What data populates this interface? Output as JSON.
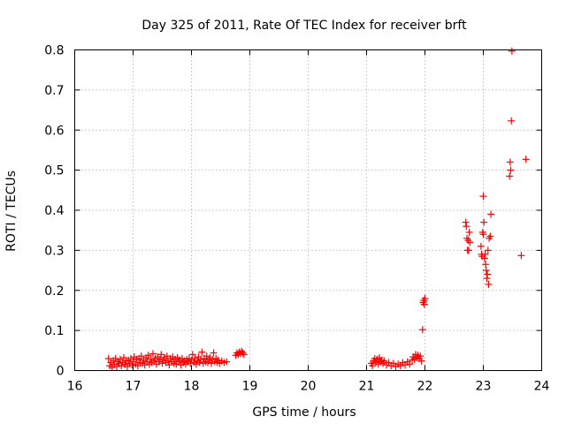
{
  "chart_data": {
    "type": "scatter",
    "title": "Day 325 of 2011, Rate Of TEC Index for receiver brft",
    "xlabel": "GPS time / hours",
    "ylabel": "ROTI / TECUs",
    "xlim": [
      16,
      24
    ],
    "ylim": [
      0,
      0.8
    ],
    "x_ticks": [
      16,
      17,
      18,
      19,
      20,
      21,
      22,
      23,
      24
    ],
    "y_ticks": [
      0,
      0.1,
      0.2,
      0.3,
      0.4,
      0.5,
      0.6,
      0.7,
      0.8
    ],
    "x_tick_labels": [
      "16",
      "17",
      "18",
      "19",
      "20",
      "21",
      "22",
      "23",
      "24"
    ],
    "y_tick_labels": [
      "0",
      "0.1",
      "0.2",
      "0.3",
      "0.4",
      "0.5",
      "0.6",
      "0.7",
      "0.8"
    ],
    "grid": true,
    "marker": "plus",
    "color": "#ff0000",
    "points": [
      [
        16.58,
        0.03
      ],
      [
        16.6,
        0.012
      ],
      [
        16.62,
        0.02
      ],
      [
        16.64,
        0.008
      ],
      [
        16.66,
        0.025
      ],
      [
        16.68,
        0.015
      ],
      [
        16.7,
        0.03
      ],
      [
        16.72,
        0.01
      ],
      [
        16.74,
        0.022
      ],
      [
        16.76,
        0.018
      ],
      [
        16.78,
        0.028
      ],
      [
        16.8,
        0.012
      ],
      [
        16.82,
        0.02
      ],
      [
        16.84,
        0.032
      ],
      [
        16.86,
        0.015
      ],
      [
        16.88,
        0.024
      ],
      [
        16.9,
        0.01
      ],
      [
        16.92,
        0.026
      ],
      [
        16.94,
        0.018
      ],
      [
        16.96,
        0.03
      ],
      [
        16.98,
        0.014
      ],
      [
        17.0,
        0.022
      ],
      [
        17.02,
        0.034
      ],
      [
        17.04,
        0.016
      ],
      [
        17.06,
        0.028
      ],
      [
        17.08,
        0.012
      ],
      [
        17.1,
        0.03
      ],
      [
        17.12,
        0.02
      ],
      [
        17.14,
        0.036
      ],
      [
        17.16,
        0.018
      ],
      [
        17.18,
        0.026
      ],
      [
        17.2,
        0.014
      ],
      [
        17.22,
        0.032
      ],
      [
        17.24,
        0.022
      ],
      [
        17.26,
        0.038
      ],
      [
        17.28,
        0.016
      ],
      [
        17.3,
        0.028
      ],
      [
        17.32,
        0.02
      ],
      [
        17.34,
        0.042
      ],
      [
        17.36,
        0.024
      ],
      [
        17.38,
        0.03
      ],
      [
        17.4,
        0.016
      ],
      [
        17.42,
        0.034
      ],
      [
        17.44,
        0.022
      ],
      [
        17.46,
        0.028
      ],
      [
        17.48,
        0.04
      ],
      [
        17.5,
        0.018
      ],
      [
        17.52,
        0.026
      ],
      [
        17.54,
        0.032
      ],
      [
        17.56,
        0.02
      ],
      [
        17.58,
        0.036
      ],
      [
        17.6,
        0.024
      ],
      [
        17.62,
        0.014
      ],
      [
        17.64,
        0.03
      ],
      [
        17.66,
        0.022
      ],
      [
        17.68,
        0.034
      ],
      [
        17.7,
        0.018
      ],
      [
        17.72,
        0.028
      ],
      [
        17.74,
        0.016
      ],
      [
        17.76,
        0.032
      ],
      [
        17.78,
        0.022
      ],
      [
        17.8,
        0.026
      ],
      [
        17.82,
        0.014
      ],
      [
        17.84,
        0.03
      ],
      [
        17.86,
        0.02
      ],
      [
        17.88,
        0.024
      ],
      [
        17.9,
        0.016
      ],
      [
        17.92,
        0.028
      ],
      [
        17.94,
        0.022
      ],
      [
        17.96,
        0.03
      ],
      [
        17.98,
        0.018
      ],
      [
        18.0,
        0.026
      ],
      [
        18.02,
        0.04
      ],
      [
        18.04,
        0.02
      ],
      [
        18.06,
        0.03
      ],
      [
        18.08,
        0.016
      ],
      [
        18.1,
        0.024
      ],
      [
        18.12,
        0.034
      ],
      [
        18.14,
        0.02
      ],
      [
        18.16,
        0.028
      ],
      [
        18.18,
        0.046
      ],
      [
        18.2,
        0.018
      ],
      [
        18.22,
        0.03
      ],
      [
        18.24,
        0.022
      ],
      [
        18.26,
        0.036
      ],
      [
        18.28,
        0.02
      ],
      [
        18.3,
        0.026
      ],
      [
        18.32,
        0.032
      ],
      [
        18.34,
        0.018
      ],
      [
        18.36,
        0.028
      ],
      [
        18.38,
        0.044
      ],
      [
        18.4,
        0.022
      ],
      [
        18.42,
        0.03
      ],
      [
        18.44,
        0.02
      ],
      [
        18.46,
        0.026
      ],
      [
        18.48,
        0.018
      ],
      [
        18.52,
        0.024
      ],
      [
        18.56,
        0.02
      ],
      [
        18.6,
        0.022
      ],
      [
        18.76,
        0.038
      ],
      [
        18.78,
        0.044
      ],
      [
        18.8,
        0.04
      ],
      [
        18.82,
        0.046
      ],
      [
        18.84,
        0.042
      ],
      [
        18.86,
        0.048
      ],
      [
        18.88,
        0.044
      ],
      [
        18.9,
        0.04
      ],
      [
        21.08,
        0.018
      ],
      [
        21.1,
        0.012
      ],
      [
        21.12,
        0.024
      ],
      [
        21.14,
        0.03
      ],
      [
        21.16,
        0.02
      ],
      [
        21.18,
        0.028
      ],
      [
        21.2,
        0.016
      ],
      [
        21.22,
        0.032
      ],
      [
        21.24,
        0.022
      ],
      [
        21.26,
        0.026
      ],
      [
        21.28,
        0.018
      ],
      [
        21.3,
        0.024
      ],
      [
        21.34,
        0.014
      ],
      [
        21.38,
        0.02
      ],
      [
        21.42,
        0.012
      ],
      [
        21.46,
        0.018
      ],
      [
        21.5,
        0.01
      ],
      [
        21.54,
        0.016
      ],
      [
        21.58,
        0.012
      ],
      [
        21.62,
        0.02
      ],
      [
        21.66,
        0.014
      ],
      [
        21.7,
        0.022
      ],
      [
        21.74,
        0.016
      ],
      [
        21.78,
        0.026
      ],
      [
        21.8,
        0.034
      ],
      [
        21.82,
        0.028
      ],
      [
        21.84,
        0.04
      ],
      [
        21.86,
        0.032
      ],
      [
        21.88,
        0.038
      ],
      [
        21.9,
        0.03
      ],
      [
        21.92,
        0.036
      ],
      [
        21.94,
        0.024
      ],
      [
        21.96,
        0.102
      ],
      [
        21.97,
        0.17
      ],
      [
        21.98,
        0.175
      ],
      [
        21.99,
        0.165
      ],
      [
        22.0,
        0.18
      ],
      [
        22.7,
        0.37
      ],
      [
        22.71,
        0.36
      ],
      [
        22.72,
        0.33
      ],
      [
        22.73,
        0.3
      ],
      [
        22.74,
        0.325
      ],
      [
        22.75,
        0.3
      ],
      [
        22.76,
        0.345
      ],
      [
        22.77,
        0.32
      ],
      [
        22.96,
        0.31
      ],
      [
        22.97,
        0.29
      ],
      [
        22.98,
        0.285
      ],
      [
        22.99,
        0.345
      ],
      [
        23.0,
        0.435
      ],
      [
        23.0,
        0.34
      ],
      [
        23.01,
        0.37
      ],
      [
        23.02,
        0.28
      ],
      [
        23.03,
        0.29
      ],
      [
        23.04,
        0.265
      ],
      [
        23.05,
        0.25
      ],
      [
        23.06,
        0.23
      ],
      [
        23.07,
        0.24
      ],
      [
        23.08,
        0.3
      ],
      [
        23.09,
        0.215
      ],
      [
        23.1,
        0.33
      ],
      [
        23.12,
        0.335
      ],
      [
        23.13,
        0.39
      ],
      [
        23.45,
        0.485
      ],
      [
        23.46,
        0.52
      ],
      [
        23.47,
        0.5
      ],
      [
        23.48,
        0.623
      ],
      [
        23.49,
        0.797
      ],
      [
        23.65,
        0.287
      ],
      [
        23.73,
        0.527
      ]
    ]
  }
}
